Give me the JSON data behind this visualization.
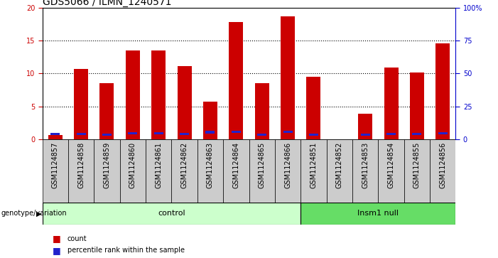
{
  "title": "GDS5066 / ILMN_1240571",
  "samples": [
    "GSM1124857",
    "GSM1124858",
    "GSM1124859",
    "GSM1124860",
    "GSM1124861",
    "GSM1124862",
    "GSM1124863",
    "GSM1124864",
    "GSM1124865",
    "GSM1124866",
    "GSM1124851",
    "GSM1124852",
    "GSM1124853",
    "GSM1124854",
    "GSM1124855",
    "GSM1124856"
  ],
  "counts": [
    0.7,
    10.7,
    8.5,
    13.5,
    13.5,
    11.1,
    5.7,
    17.8,
    8.5,
    18.7,
    9.5,
    0.0,
    3.9,
    10.9,
    10.2,
    14.6
  ],
  "percentile": [
    4.0,
    4.0,
    3.5,
    4.7,
    4.7,
    4.1,
    5.4,
    5.5,
    3.5,
    5.5,
    3.5,
    0.0,
    3.5,
    4.2,
    4.1,
    4.7
  ],
  "bar_color": "#cc0000",
  "percentile_color": "#2222cc",
  "bar_width": 0.55,
  "ylim_left": [
    0,
    20
  ],
  "ylim_right": [
    0,
    100
  ],
  "yticks_left": [
    0,
    5,
    10,
    15,
    20
  ],
  "yticks_right": [
    0,
    25,
    50,
    75,
    100
  ],
  "yticklabels_right": [
    "0",
    "25",
    "50",
    "75",
    "100%"
  ],
  "groups": [
    {
      "label": "control",
      "start": 0,
      "end": 10,
      "color": "#ccffcc"
    },
    {
      "label": "Insm1 null",
      "start": 10,
      "end": 16,
      "color": "#66dd66"
    }
  ],
  "group_row_label": "genotype/variation",
  "tick_label_color_left": "#cc0000",
  "tick_label_color_right": "#0000cc",
  "grid_color": "black",
  "background_plot": "#ffffff",
  "background_xtick": "#cccccc",
  "legend_count_color": "#cc0000",
  "legend_percentile_color": "#2222cc",
  "legend_count_label": "count",
  "legend_percentile_label": "percentile rank within the sample",
  "title_fontsize": 10,
  "tick_fontsize": 7,
  "sample_fontsize": 7,
  "label_fontsize": 8
}
